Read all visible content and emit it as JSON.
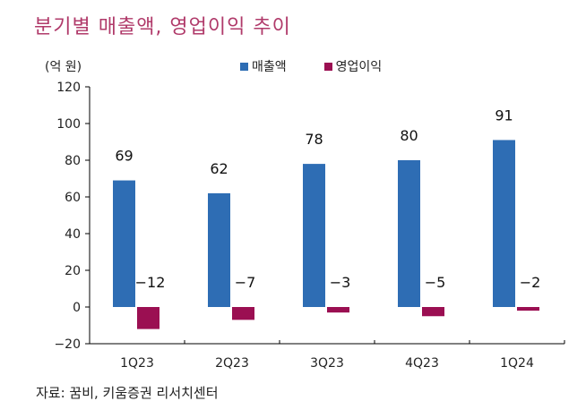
{
  "chart_data": {
    "type": "bar",
    "title": "분기별 매출액, 영업이익 추이",
    "unit": "(억 원)",
    "categories": [
      "1Q23",
      "2Q23",
      "3Q23",
      "4Q23",
      "1Q24"
    ],
    "series": [
      {
        "name": "매출액",
        "color": "#2e6db4",
        "values": [
          69,
          62,
          78,
          80,
          91
        ]
      },
      {
        "name": "영업이익",
        "color": "#9b0f52",
        "values": [
          -12,
          -7,
          -3,
          -5,
          -2
        ]
      }
    ],
    "data_labels": {
      "매출액": [
        "69",
        "62",
        "78",
        "80",
        "91"
      ],
      "영업이익": [
        "−12",
        "−7",
        "−3",
        "−5",
        "−2"
      ]
    },
    "ylim": [
      -20,
      120
    ],
    "yticks": [
      -20,
      0,
      20,
      40,
      60,
      80,
      100,
      120
    ],
    "ytick_labels": [
      "−20",
      "0",
      "20",
      "40",
      "60",
      "80",
      "100",
      "120"
    ],
    "grid": false,
    "legend_position": "top-center"
  },
  "source": "자료: 꿈비, 키움증권 리서치센터"
}
